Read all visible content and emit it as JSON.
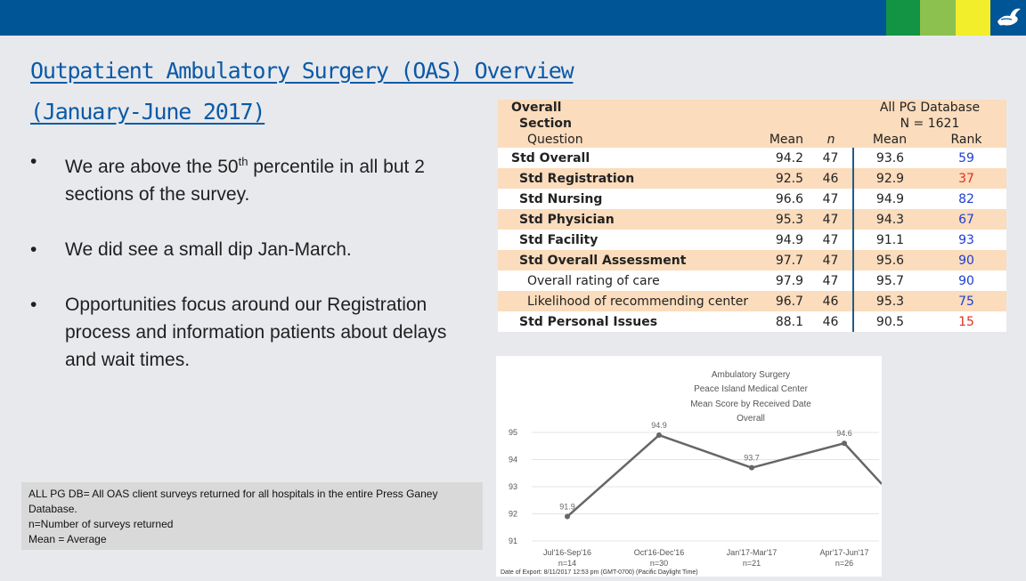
{
  "title": {
    "line1": "Outpatient Ambulatory Surgery (OAS) Overview ",
    "line2": "(January-June 2017)"
  },
  "bullets": [
    {
      "dot": "•",
      "pre": "We are above the 50",
      "sup": "th",
      "post": " percentile in all but 2 sections of the survey."
    },
    {
      "dot": "•",
      "text": "We did see a small dip Jan-March."
    },
    {
      "dot": "•",
      "text": "Opportunities focus around our Registration process and information patients about delays and wait times."
    }
  ],
  "note": {
    "line1": "ALL PG DB= All OAS client surveys returned for all hospitals in the entire Press Ganey",
    "line2": "Database.",
    "line3": "n=Number of surveys returned",
    "line4": "Mean = Average"
  },
  "colors": {
    "brand": "#005596",
    "green1": "#139445",
    "green2": "#8cc04f",
    "yellow": "#f2ee2c",
    "peach": "#fbdcbc",
    "rank_blue": "#1e3ed0",
    "rank_red": "#e03020"
  },
  "table": {
    "h_overall": "Overall",
    "h_section": "Section",
    "h_question": "Question",
    "h_db": "All PG Database",
    "h_n_db": "N = 1621",
    "h_mean": "Mean",
    "h_n": "n",
    "h_db_mean": "Mean",
    "h_rank": "Rank",
    "rows": [
      {
        "label": "Std Overall",
        "mean": "94.2",
        "n": "47",
        "dbmean": "93.6",
        "rank": "59",
        "rank_color": "blue",
        "bold": true,
        "indent": 0
      },
      {
        "label": "Std Registration",
        "mean": "92.5",
        "n": "46",
        "dbmean": "92.9",
        "rank": "37",
        "rank_color": "red",
        "bold": true,
        "indent": 1
      },
      {
        "label": "Std Nursing",
        "mean": "96.6",
        "n": "47",
        "dbmean": "94.9",
        "rank": "82",
        "rank_color": "blue",
        "bold": true,
        "indent": 1
      },
      {
        "label": "Std Physician",
        "mean": "95.3",
        "n": "47",
        "dbmean": "94.3",
        "rank": "67",
        "rank_color": "blue",
        "bold": true,
        "indent": 1
      },
      {
        "label": "Std Facility",
        "mean": "94.9",
        "n": "47",
        "dbmean": "91.1",
        "rank": "93",
        "rank_color": "blue",
        "bold": true,
        "indent": 1
      },
      {
        "label": "Std Overall Assessment",
        "mean": "97.7",
        "n": "47",
        "dbmean": "95.6",
        "rank": "90",
        "rank_color": "blue",
        "bold": true,
        "indent": 1
      },
      {
        "label": "Overall rating of care",
        "mean": "97.9",
        "n": "47",
        "dbmean": "95.7",
        "rank": "90",
        "rank_color": "blue",
        "bold": false,
        "indent": 2
      },
      {
        "label": "Likelihood of recommending center",
        "mean": "96.7",
        "n": "46",
        "dbmean": "95.3",
        "rank": "75",
        "rank_color": "blue",
        "bold": false,
        "indent": 2
      },
      {
        "label": "Std Personal Issues",
        "mean": "88.1",
        "n": "46",
        "dbmean": "90.5",
        "rank": "15",
        "rank_color": "red",
        "bold": true,
        "indent": 1
      }
    ]
  },
  "chart_data": {
    "type": "line",
    "title": "Ambulatory Surgery",
    "subtitle1": "Peace Island Medical Center",
    "subtitle2": "Mean Score by Received Date",
    "subtitle3": "Overall",
    "categories": [
      "Jul'16-Sep'16",
      "Oct'16-Dec'16",
      "Jan'17-Mar'17",
      "Apr'17-Jun'17"
    ],
    "n_labels": [
      "n=14",
      "n=30",
      "n=21",
      "n=26"
    ],
    "values": [
      91.9,
      94.9,
      93.7,
      94.6
    ],
    "value_labels": [
      "91.9",
      "94.9",
      "93.7",
      "94.6"
    ],
    "ylim": [
      91,
      95
    ],
    "yticks": [
      "95",
      "94",
      "93",
      "92",
      "91"
    ],
    "footer": "Date of Export: 8/11/2017 12:53 pm (GMT-0700) (Pacific Daylight Time)"
  }
}
